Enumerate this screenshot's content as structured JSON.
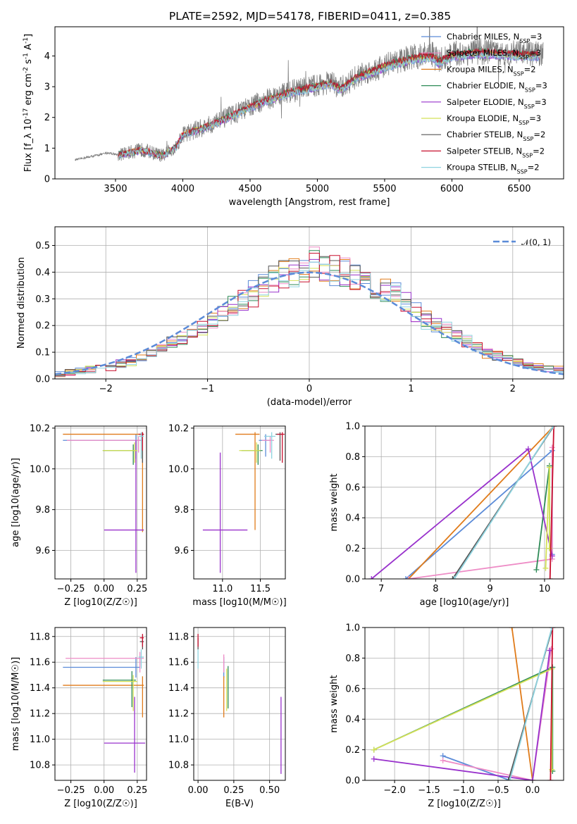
{
  "figure": {
    "title": "PLATE=2592, MJD=54178, FIBERID=0411, z=0.385"
  },
  "series_colors": [
    "#5b8bd8",
    "#e07b1a",
    "#ee8cc6",
    "#2e8b57",
    "#9932cc",
    "#d4e157",
    "#555555",
    "#c8102e",
    "#8fd3df"
  ],
  "chart_data": [
    {
      "id": "spectrum",
      "type": "line",
      "xlabel": "wavelength [Angstrom, rest frame]",
      "ylabel": "Flux [f_λ 10^-17 erg cm^-2 s^-1 A^-1]",
      "xlim": [
        3050,
        6830
      ],
      "ylim": [
        0,
        4.95
      ],
      "xticks": [
        3500,
        4000,
        4500,
        5000,
        5500,
        6000,
        6500
      ],
      "yticks": [
        0,
        1,
        2,
        3,
        4
      ],
      "grid": false,
      "legend": "upper-right",
      "data_color": "#808080",
      "data_x_range": [
        3200,
        6680
      ],
      "model_x_range": [
        3520,
        6650
      ],
      "continuum": [
        [
          3200,
          0.62
        ],
        [
          3450,
          0.85
        ],
        [
          3520,
          0.78
        ],
        [
          3700,
          0.95
        ],
        [
          3850,
          0.75
        ],
        [
          3950,
          1.05
        ],
        [
          4000,
          1.45
        ],
        [
          4200,
          1.75
        ],
        [
          4400,
          2.15
        ],
        [
          4600,
          2.55
        ],
        [
          4800,
          2.85
        ],
        [
          5000,
          3.05
        ],
        [
          5100,
          3.15
        ],
        [
          5170,
          2.95
        ],
        [
          5300,
          3.35
        ],
        [
          5500,
          3.7
        ],
        [
          5700,
          3.95
        ],
        [
          5850,
          4.05
        ],
        [
          5900,
          3.85
        ],
        [
          6000,
          4.05
        ],
        [
          6200,
          4.15
        ],
        [
          6400,
          4.1
        ],
        [
          6680,
          4.05
        ]
      ],
      "legend_entries": [
        {
          "label": "Chabrier MILES, N_SSP=3",
          "color": "#5b8bd8"
        },
        {
          "label": "Salpeter MILES, N_SSP=3",
          "color": "#ee8cc6"
        },
        {
          "label": "Kroupa MILES, N_SSP=2",
          "color": "#e07b1a"
        },
        {
          "label": "Chabrier ELODIE, N_SSP=3",
          "color": "#2e8b57"
        },
        {
          "label": "Salpeter ELODIE, N_SSP=3",
          "color": "#9932cc"
        },
        {
          "label": "Kroupa ELODIE, N_SSP=3",
          "color": "#d4e157"
        },
        {
          "label": "Chabrier STELIB, N_SSP=2",
          "color": "#555555"
        },
        {
          "label": "Salpeter STELIB, N_SSP=2",
          "color": "#c8102e"
        },
        {
          "label": "Kroupa STELIB, N_SSP=2",
          "color": "#8fd3df"
        }
      ]
    },
    {
      "id": "residuals",
      "type": "histogram",
      "xlabel": "(data-model)/error",
      "ylabel": "Normed distribution",
      "xlim": [
        -2.5,
        2.5
      ],
      "ylim": [
        0,
        0.57
      ],
      "xticks": [
        -2,
        -1,
        0,
        1,
        2
      ],
      "yticks": [
        0.0,
        0.1,
        0.2,
        0.3,
        0.4,
        0.5
      ],
      "grid": true,
      "bins": {
        "start": -2.5,
        "width": 0.1,
        "count": 50
      },
      "normal_label": "𝒩(0, 1)",
      "normal_color": "#5b8bd8",
      "legend": "upper-right",
      "hist_colors": [
        "#5b8bd8",
        "#e07b1a",
        "#ee8cc6",
        "#2e8b57",
        "#9932cc",
        "#d4e157",
        "#555555",
        "#c8102e",
        "#8fd3df"
      ],
      "envelope": [
        0.02,
        0.025,
        0.03,
        0.035,
        0.04,
        0.045,
        0.055,
        0.065,
        0.075,
        0.09,
        0.11,
        0.13,
        0.15,
        0.17,
        0.19,
        0.22,
        0.25,
        0.27,
        0.29,
        0.32,
        0.34,
        0.37,
        0.39,
        0.4,
        0.41,
        0.44,
        0.42,
        0.41,
        0.4,
        0.38,
        0.36,
        0.35,
        0.33,
        0.31,
        0.28,
        0.25,
        0.22,
        0.2,
        0.18,
        0.16,
        0.14,
        0.12,
        0.1,
        0.09,
        0.075,
        0.06,
        0.05,
        0.045,
        0.04,
        0.035
      ]
    },
    {
      "id": "age-vs-Z",
      "type": "errorbar",
      "xlabel": "Z [log10(Z/Z☉)]",
      "ylabel": "age [log10(age/yr)]",
      "xlim": [
        -0.37,
        0.32
      ],
      "ylim": [
        9.46,
        10.21
      ],
      "xticks": [
        -0.25,
        0.0,
        0.25
      ],
      "ytick_values": [
        9.6,
        9.8,
        10.0,
        10.2
      ],
      "grid": true,
      "points": [
        {
          "x": 0.24,
          "y": 10.14,
          "xlo": -0.31,
          "xhi": 0.28,
          "ylo": 10.05,
          "yhi": 10.17,
          "c": "#5b8bd8"
        },
        {
          "x": 0.29,
          "y": 10.17,
          "xlo": -0.31,
          "xhi": 0.3,
          "ylo": 9.69,
          "yhi": 10.18,
          "c": "#e07b1a"
        },
        {
          "x": 0.26,
          "y": 10.14,
          "xlo": -0.28,
          "xhi": 0.29,
          "ylo": 10.08,
          "yhi": 10.16,
          "c": "#ee8cc6"
        },
        {
          "x": 0.22,
          "y": 10.09,
          "xlo": -0.01,
          "xhi": 0.24,
          "ylo": 10.02,
          "yhi": 10.12,
          "c": "#2e8b57"
        },
        {
          "x": 0.24,
          "y": 9.7,
          "xlo": 0.0,
          "xhi": 0.3,
          "ylo": 9.49,
          "yhi": 10.14,
          "c": "#9932cc"
        },
        {
          "x": 0.23,
          "y": 10.09,
          "xlo": -0.01,
          "xhi": 0.25,
          "ylo": 10.03,
          "yhi": 10.13,
          "c": "#d4e157"
        },
        {
          "x": 0.29,
          "y": 10.17,
          "xlo": 0.27,
          "xhi": 0.3,
          "ylo": 10.03,
          "yhi": 10.18,
          "c": "#555555"
        },
        {
          "x": 0.29,
          "y": 10.17,
          "xlo": 0.26,
          "xhi": 0.3,
          "ylo": 10.09,
          "yhi": 10.18,
          "c": "#c8102e"
        },
        {
          "x": 0.28,
          "y": 10.16,
          "xlo": 0.26,
          "xhi": 0.3,
          "ylo": 10.05,
          "yhi": 10.18,
          "c": "#8fd3df"
        }
      ]
    },
    {
      "id": "age-vs-mass",
      "type": "errorbar",
      "xlabel": "mass [log10(M/M☉)]",
      "ylabel": "",
      "xlim": [
        10.62,
        11.83
      ],
      "ylim": [
        9.46,
        10.21
      ],
      "xticks": [
        11.0,
        11.5
      ],
      "ytick_values": [
        9.6,
        9.8,
        10.0,
        10.2
      ],
      "grid": true,
      "points": [
        {
          "x": 11.57,
          "y": 10.14,
          "xlo": 11.48,
          "xhi": 11.64,
          "ylo": 10.06,
          "yhi": 10.17,
          "c": "#5b8bd8"
        },
        {
          "x": 11.43,
          "y": 10.17,
          "xlo": 11.17,
          "xhi": 11.49,
          "ylo": 9.7,
          "yhi": 10.18,
          "c": "#e07b1a"
        },
        {
          "x": 11.63,
          "y": 10.14,
          "xlo": 11.52,
          "xhi": 11.68,
          "ylo": 10.08,
          "yhi": 10.16,
          "c": "#ee8cc6"
        },
        {
          "x": 11.47,
          "y": 10.09,
          "xlo": 11.25,
          "xhi": 11.53,
          "ylo": 10.02,
          "yhi": 10.12,
          "c": "#2e8b57"
        },
        {
          "x": 10.97,
          "y": 9.7,
          "xlo": 10.74,
          "xhi": 11.33,
          "ylo": 9.49,
          "yhi": 10.08,
          "c": "#9932cc"
        },
        {
          "x": 11.45,
          "y": 10.09,
          "xlo": 11.22,
          "xhi": 11.5,
          "ylo": 10.03,
          "yhi": 10.13,
          "c": "#d4e157"
        },
        {
          "x": 11.76,
          "y": 10.17,
          "xlo": 11.7,
          "xhi": 11.79,
          "ylo": 10.04,
          "yhi": 10.18,
          "c": "#555555"
        },
        {
          "x": 11.79,
          "y": 10.17,
          "xlo": 11.72,
          "xhi": 11.82,
          "ylo": 10.03,
          "yhi": 10.18,
          "c": "#c8102e"
        },
        {
          "x": 11.65,
          "y": 10.16,
          "xlo": 11.55,
          "xhi": 11.7,
          "ylo": 10.05,
          "yhi": 10.18,
          "c": "#8fd3df"
        }
      ]
    },
    {
      "id": "mass-weight-vs-age",
      "type": "line",
      "xlabel": "age [log10(age/yr)]",
      "ylabel": "mass weight",
      "xlim": [
        6.7,
        10.35
      ],
      "ylim": [
        0,
        1
      ],
      "xticks": [
        7,
        8,
        9,
        10
      ],
      "ytick_values": [
        0.0,
        0.2,
        0.4,
        0.6,
        0.8,
        1.0
      ],
      "grid": true,
      "series": [
        {
          "c": "#5b8bd8",
          "pts": [
            [
              7.45,
              0.0
            ],
            [
              10.14,
              0.84
            ],
            [
              10.14,
              0.16
            ]
          ]
        },
        {
          "c": "#e07b1a",
          "pts": [
            [
              7.5,
              0.0
            ],
            [
              10.17,
              1.0
            ]
          ]
        },
        {
          "c": "#ee8cc6",
          "pts": [
            [
              7.5,
              0.0
            ],
            [
              10.14,
              0.13
            ],
            [
              10.14,
              0.86
            ]
          ]
        },
        {
          "c": "#2e8b57",
          "pts": [
            [
              9.85,
              0.06
            ],
            [
              10.09,
              0.74
            ],
            [
              10.09,
              0.2
            ]
          ]
        },
        {
          "c": "#9932cc",
          "pts": [
            [
              6.82,
              0.0
            ],
            [
              9.7,
              0.85
            ],
            [
              10.14,
              0.15
            ]
          ]
        },
        {
          "c": "#d4e157",
          "pts": [
            [
              10.02,
              0.07
            ],
            [
              10.09,
              0.73
            ],
            [
              10.09,
              0.2
            ]
          ]
        },
        {
          "c": "#555555",
          "pts": [
            [
              8.31,
              0.0
            ],
            [
              10.17,
              1.0
            ]
          ]
        },
        {
          "c": "#c8102e",
          "pts": [
            [
              10.1,
              0.0
            ],
            [
              10.17,
              1.0
            ]
          ]
        },
        {
          "c": "#8fd3df",
          "pts": [
            [
              8.34,
              0.0
            ],
            [
              10.16,
              1.0
            ]
          ]
        }
      ]
    },
    {
      "id": "mass-vs-Z",
      "type": "errorbar",
      "xlabel": "Z [log10(Z/Z☉)]",
      "ylabel": "mass [log10(M/M☉)]",
      "xlim": [
        -0.37,
        0.32
      ],
      "ylim": [
        10.68,
        11.87
      ],
      "xticks": [
        -0.25,
        0.0,
        0.25
      ],
      "ytick_values": [
        10.8,
        11.0,
        11.2,
        11.4,
        11.6,
        11.8
      ],
      "grid": true,
      "points": [
        {
          "x": 0.24,
          "y": 11.56,
          "xlo": -0.31,
          "xhi": 0.27,
          "ylo": 11.48,
          "yhi": 11.64,
          "c": "#5b8bd8"
        },
        {
          "x": 0.29,
          "y": 11.42,
          "xlo": -0.31,
          "xhi": 0.3,
          "ylo": 11.17,
          "yhi": 11.49,
          "c": "#e07b1a"
        },
        {
          "x": 0.27,
          "y": 11.63,
          "xlo": -0.29,
          "xhi": 0.3,
          "ylo": 11.52,
          "yhi": 11.68,
          "c": "#ee8cc6"
        },
        {
          "x": 0.21,
          "y": 11.46,
          "xlo": -0.01,
          "xhi": 0.24,
          "ylo": 11.25,
          "yhi": 11.53,
          "c": "#2e8b57"
        },
        {
          "x": 0.23,
          "y": 10.97,
          "xlo": 0.0,
          "xhi": 0.31,
          "ylo": 10.74,
          "yhi": 11.33,
          "c": "#9932cc"
        },
        {
          "x": 0.22,
          "y": 11.45,
          "xlo": -0.01,
          "xhi": 0.25,
          "ylo": 11.22,
          "yhi": 11.5,
          "c": "#d4e157"
        },
        {
          "x": 0.29,
          "y": 11.76,
          "xlo": 0.27,
          "xhi": 0.3,
          "ylo": 11.7,
          "yhi": 11.79,
          "c": "#555555"
        },
        {
          "x": 0.29,
          "y": 11.79,
          "xlo": 0.27,
          "xhi": 0.3,
          "ylo": 11.72,
          "yhi": 11.82,
          "c": "#c8102e"
        },
        {
          "x": 0.28,
          "y": 11.64,
          "xlo": 0.26,
          "xhi": 0.3,
          "ylo": 11.55,
          "yhi": 11.7,
          "c": "#8fd3df"
        }
      ]
    },
    {
      "id": "mass-vs-ebv",
      "type": "errorbar",
      "xlabel": "E(B-V)",
      "ylabel": "",
      "xlim": [
        -0.03,
        0.61
      ],
      "ylim": [
        10.68,
        11.87
      ],
      "xticks": [
        0.0,
        0.25,
        0.5
      ],
      "ytick_values": [
        10.8,
        11.0,
        11.2,
        11.4,
        11.6,
        11.8
      ],
      "grid": true,
      "points": [
        {
          "x": 0.18,
          "y": 11.56,
          "ylo": 11.48,
          "yhi": 11.64,
          "c": "#5b8bd8"
        },
        {
          "x": 0.18,
          "y": 11.42,
          "ylo": 11.17,
          "yhi": 11.49,
          "c": "#e07b1a"
        },
        {
          "x": 0.18,
          "y": 11.63,
          "ylo": 11.52,
          "yhi": 11.66,
          "c": "#ee8cc6"
        },
        {
          "x": 0.21,
          "y": 11.46,
          "ylo": 11.24,
          "yhi": 11.57,
          "c": "#2e8b57"
        },
        {
          "x": 0.58,
          "y": 10.97,
          "ylo": 10.73,
          "yhi": 11.33,
          "c": "#9932cc"
        },
        {
          "x": 0.2,
          "y": 11.45,
          "ylo": 11.22,
          "yhi": 11.55,
          "c": "#d4e157"
        },
        {
          "x": 0.0,
          "y": 11.76,
          "ylo": 11.7,
          "yhi": 11.79,
          "c": "#555555"
        },
        {
          "x": 0.0,
          "y": 11.79,
          "ylo": 11.72,
          "yhi": 11.82,
          "c": "#c8102e"
        },
        {
          "x": 0.0,
          "y": 11.64,
          "ylo": 11.55,
          "yhi": 11.7,
          "c": "#8fd3df"
        }
      ]
    },
    {
      "id": "mass-weight-vs-Z",
      "type": "line",
      "xlabel": "Z [log10(Z/Z☉)]",
      "ylabel": "mass weight",
      "xlim": [
        -2.43,
        0.45
      ],
      "ylim": [
        0,
        1
      ],
      "xticks": [
        -2.0,
        -1.5,
        -1.0,
        -0.5,
        0.0
      ],
      "ytick_values": [
        0.0,
        0.2,
        0.4,
        0.6,
        0.8,
        1.0
      ],
      "grid": true,
      "series": [
        {
          "c": "#5b8bd8",
          "pts": [
            [
              -1.3,
              0.16
            ],
            [
              -0.33,
              0.0
            ]
          ]
        },
        {
          "c": "#e07b1a",
          "pts": [
            [
              -0.3,
              1.0
            ],
            [
              0.0,
              0.0
            ]
          ]
        },
        {
          "c": "#ee8cc6",
          "pts": [
            [
              -1.3,
              0.13
            ],
            [
              0.0,
              0.0
            ],
            [
              0.27,
              0.86
            ]
          ]
        },
        {
          "c": "#2e8b57",
          "pts": [
            [
              -2.3,
              0.2
            ],
            [
              0.29,
              0.74
            ],
            [
              0.29,
              0.06
            ]
          ]
        },
        {
          "c": "#9932cc",
          "pts": [
            [
              -2.3,
              0.14
            ],
            [
              0.0,
              0.0
            ],
            [
              0.25,
              0.85
            ]
          ]
        },
        {
          "c": "#d4e157",
          "pts": [
            [
              -2.3,
              0.2
            ],
            [
              0.28,
              0.73
            ],
            [
              0.28,
              0.07
            ]
          ]
        },
        {
          "c": "#555555",
          "pts": [
            [
              -0.35,
              0.0
            ],
            [
              0.29,
              1.0
            ]
          ]
        },
        {
          "c": "#c8102e",
          "pts": [
            [
              0.26,
              0.0
            ],
            [
              0.29,
              1.0
            ]
          ]
        },
        {
          "c": "#8fd3df",
          "pts": [
            [
              -0.33,
              0.0
            ],
            [
              0.28,
              1.0
            ]
          ]
        }
      ]
    }
  ]
}
